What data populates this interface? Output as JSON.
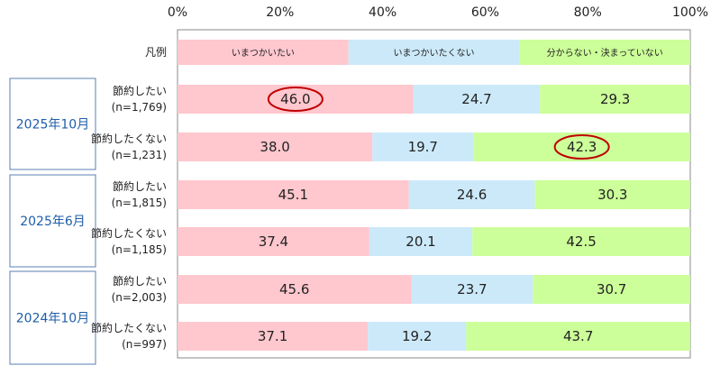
{
  "chart_data": {
    "type": "bar",
    "orientation": "horizontal",
    "stacked": true,
    "percent_axis": true,
    "xlim": [
      0,
      100
    ],
    "x_ticks": [
      "0%",
      "20%",
      "40%",
      "60%",
      "80%",
      "100%"
    ],
    "legend": {
      "label": "凡例",
      "entries": [
        "いまつかいたい",
        "いまつかいたくない",
        "分からない・決まっていない"
      ]
    },
    "series_colors": [
      "#ffc7ce",
      "#cce9f9",
      "#ccff99"
    ],
    "groups": [
      {
        "label": "2025年10月",
        "rows": [
          {
            "label": "節約したい",
            "n": "(n=1,769)",
            "values": [
              46.0,
              24.7,
              29.3
            ],
            "value_labels": [
              "46.0",
              "24.7",
              "29.3"
            ],
            "circled": 0
          },
          {
            "label": "節約したくない",
            "n": "(n=1,231)",
            "values": [
              38.0,
              19.7,
              42.3
            ],
            "value_labels": [
              "38.0",
              "19.7",
              "42.3"
            ],
            "circled": 2
          }
        ]
      },
      {
        "label": "2025年6月",
        "rows": [
          {
            "label": "節約したい",
            "n": "(n=1,815)",
            "values": [
              45.1,
              24.6,
              30.3
            ],
            "value_labels": [
              "45.1",
              "24.6",
              "30.3"
            ],
            "circled": null
          },
          {
            "label": "節約したくない",
            "n": "(n=1,185)",
            "values": [
              37.4,
              20.1,
              42.5
            ],
            "value_labels": [
              "37.4",
              "20.1",
              "42.5"
            ],
            "circled": null
          }
        ]
      },
      {
        "label": "2024年10月",
        "rows": [
          {
            "label": "節約したい",
            "n": "(n=2,003)",
            "values": [
              45.6,
              23.7,
              30.7
            ],
            "value_labels": [
              "45.6",
              "23.7",
              "30.7"
            ],
            "circled": null
          },
          {
            "label": "節約したくない",
            "n": "(n=997)",
            "values": [
              37.1,
              19.2,
              43.7
            ],
            "value_labels": [
              "37.1",
              "19.2",
              "43.7"
            ],
            "circled": null
          }
        ]
      }
    ],
    "highlight_color": "#c00000",
    "grid": false
  }
}
